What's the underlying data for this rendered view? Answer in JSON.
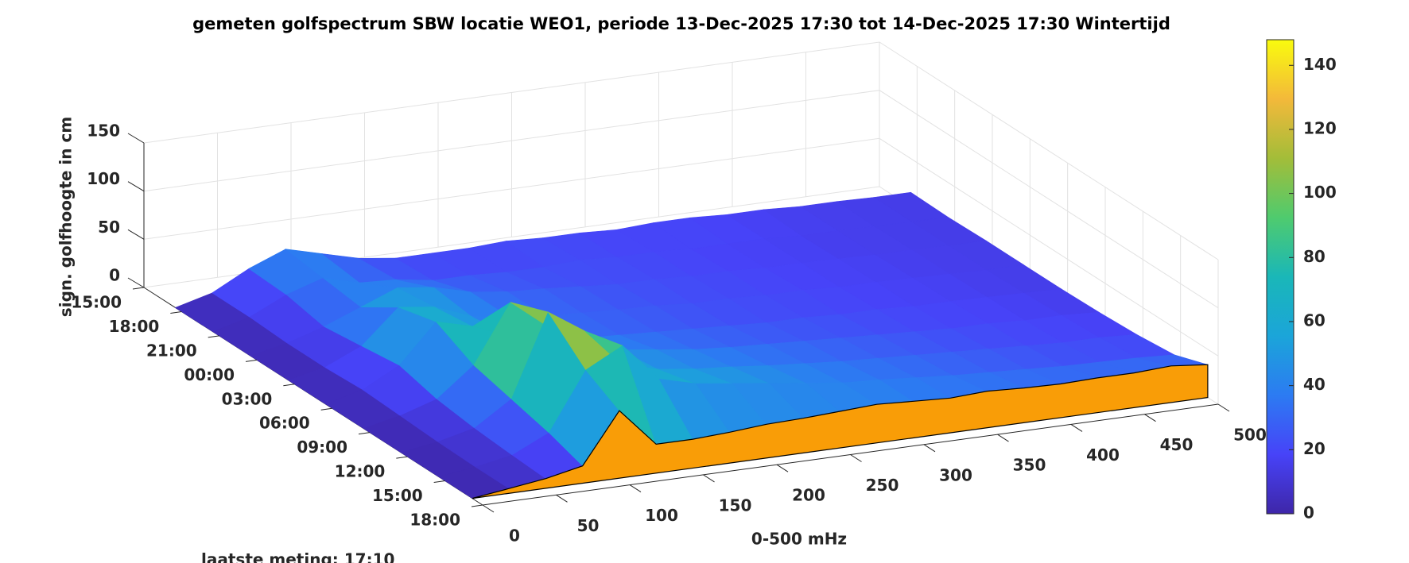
{
  "chart_data": {
    "type": "surface",
    "title": "gemeten golfspectrum SBW locatie WEO1, periode 13-Dec-2025 17:30 tot 14-Dec-2025 17:30 Wintertijd",
    "xlabel": "0-500 mHz",
    "zlabel": "sign. golfhoogte in cm",
    "annotation": "laatste meting: 17:10",
    "x": [
      0,
      25,
      50,
      75,
      100,
      125,
      150,
      175,
      200,
      225,
      250,
      275,
      300,
      325,
      350,
      375,
      400,
      425,
      450,
      475,
      500
    ],
    "times": [
      2.5,
      5.5,
      8.5,
      11.5,
      14.5,
      17.5,
      20.5,
      23.5,
      26.17
    ],
    "z": [
      [
        0,
        10,
        30,
        45,
        35,
        25,
        20,
        20,
        20,
        22,
        20,
        20,
        18,
        20,
        20,
        18,
        18,
        16,
        16,
        15,
        15
      ],
      [
        0,
        10,
        28,
        40,
        30,
        28,
        22,
        22,
        20,
        20,
        22,
        20,
        20,
        18,
        18,
        18,
        16,
        16,
        15,
        15,
        14
      ],
      [
        0,
        8,
        20,
        35,
        50,
        45,
        35,
        30,
        28,
        25,
        22,
        22,
        20,
        20,
        18,
        18,
        17,
        16,
        16,
        15,
        15
      ],
      [
        0,
        8,
        25,
        60,
        55,
        40,
        35,
        30,
        28,
        26,
        25,
        22,
        22,
        20,
        20,
        18,
        18,
        17,
        16,
        15,
        15
      ],
      [
        0,
        10,
        30,
        70,
        60,
        45,
        38,
        32,
        30,
        28,
        26,
        24,
        22,
        22,
        20,
        20,
        18,
        18,
        17,
        16,
        15
      ],
      [
        0,
        8,
        20,
        50,
        110,
        80,
        55,
        45,
        40,
        35,
        32,
        30,
        28,
        26,
        24,
        22,
        20,
        20,
        18,
        18,
        16
      ],
      [
        0,
        6,
        15,
        40,
        125,
        100,
        60,
        50,
        45,
        42,
        38,
        35,
        32,
        30,
        28,
        26,
        24,
        22,
        20,
        20,
        18
      ],
      [
        0,
        5,
        12,
        30,
        90,
        110,
        70,
        60,
        55,
        50,
        45,
        40,
        38,
        35,
        32,
        30,
        28,
        26,
        25,
        24,
        22
      ],
      [
        0,
        5,
        10,
        18,
        70,
        30,
        30,
        32,
        35,
        36,
        38,
        40,
        38,
        36,
        38,
        36,
        35,
        36,
        36,
        38,
        34
      ]
    ],
    "xlim": [
      0,
      500
    ],
    "xticks": [
      0,
      50,
      100,
      150,
      200,
      250,
      300,
      350,
      400,
      450,
      500
    ],
    "ylim": [
      0,
      27
    ],
    "yticks": [
      {
        "value": 0,
        "label": "15:00"
      },
      {
        "value": 3,
        "label": "18:00"
      },
      {
        "value": 6,
        "label": "21:00"
      },
      {
        "value": 9,
        "label": "00:00"
      },
      {
        "value": 12,
        "label": "03:00"
      },
      {
        "value": 15,
        "label": "06:00"
      },
      {
        "value": 18,
        "label": "09:00"
      },
      {
        "value": 21,
        "label": "12:00"
      },
      {
        "value": 24,
        "label": "15:00"
      },
      {
        "value": 27,
        "label": "18:00"
      }
    ],
    "zlim": [
      0,
      150
    ],
    "zticks": [
      0,
      50,
      100,
      150
    ],
    "clim": [
      0,
      148
    ],
    "cticks": [
      0,
      20,
      40,
      60,
      80,
      100,
      120,
      140
    ],
    "colormap": [
      "#3e26a8",
      "#4743f8",
      "#2c7bf2",
      "#1ba5d9",
      "#1ab7b8",
      "#4fcb6e",
      "#a3bd39",
      "#f3b93a",
      "#f9fb0e"
    ],
    "front_color": "#f99d07",
    "grid": true
  }
}
